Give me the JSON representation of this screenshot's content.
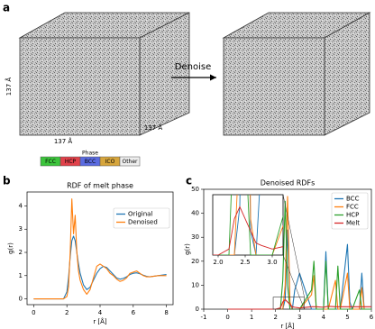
{
  "figure": {
    "panel_labels": [
      "a",
      "b",
      "c"
    ],
    "cube_labels": [
      "137 Å",
      "137 Å",
      "137 Å"
    ],
    "arrow_label": "Denoise",
    "phase_legend": {
      "title": "Phase",
      "items": [
        {
          "label": "FCC",
          "color": "#3cc43c"
        },
        {
          "label": "HCP",
          "color": "#e0414a"
        },
        {
          "label": "BCC",
          "color": "#5a6be0"
        },
        {
          "label": "ICO",
          "color": "#d6a53c"
        },
        {
          "label": "Other",
          "color": "#eeeeee"
        }
      ]
    }
  },
  "chart_data": [
    {
      "type": "line",
      "title": "RDF of melt phase",
      "xlabel": "r [Å]",
      "ylabel": "g(r)",
      "x": [
        0,
        0.5,
        1,
        1.5,
        1.8,
        2.0,
        2.1,
        2.2,
        2.3,
        2.4,
        2.5,
        2.6,
        2.7,
        2.8,
        3.0,
        3.2,
        3.4,
        3.6,
        3.8,
        4.0,
        4.2,
        4.4,
        4.6,
        4.8,
        5.0,
        5.2,
        5.4,
        5.6,
        5.8,
        6.0,
        6.2,
        6.4,
        6.6,
        6.8,
        7.0,
        7.5,
        8.0
      ],
      "series": [
        {
          "name": "Original",
          "color": "#1f77b4",
          "values": [
            0,
            0,
            0,
            0,
            0,
            0.3,
            0.9,
            1.8,
            2.5,
            2.7,
            2.5,
            2.0,
            1.5,
            1.1,
            0.6,
            0.4,
            0.5,
            0.8,
            1.1,
            1.3,
            1.4,
            1.35,
            1.2,
            1.05,
            0.9,
            0.85,
            0.88,
            0.95,
            1.05,
            1.1,
            1.12,
            1.08,
            1.02,
            0.97,
            0.95,
            1.0,
            1.05
          ]
        },
        {
          "name": "Denoised",
          "color": "#ff7f0e",
          "values": [
            0,
            0,
            0,
            0,
            0,
            0.1,
            0.5,
            2.0,
            4.3,
            2.8,
            3.6,
            2.0,
            1.2,
            0.8,
            0.4,
            0.2,
            0.4,
            0.9,
            1.4,
            1.5,
            1.4,
            1.3,
            1.1,
            1.0,
            0.85,
            0.75,
            0.8,
            0.9,
            1.1,
            1.15,
            1.2,
            1.1,
            1.0,
            0.95,
            0.95,
            1.0,
            1.0
          ]
        }
      ],
      "xlim": [
        -0.4,
        8.4
      ],
      "ylim": [
        -0.25,
        4.6
      ],
      "xticks": [
        0,
        2,
        4,
        6,
        8
      ],
      "yticks": [
        0,
        1,
        2,
        3,
        4
      ],
      "legend": "upper right"
    },
    {
      "type": "line",
      "title": "Denoised RDFs",
      "xlabel": "r [Å]",
      "ylabel": "g(r)",
      "x": [
        0,
        2.0,
        2.2,
        2.3,
        2.4,
        2.5,
        2.6,
        2.7,
        2.8,
        3.0,
        3.5,
        3.6,
        3.7,
        4.0,
        4.1,
        4.2,
        4.5,
        4.6,
        4.7,
        5.0,
        5.1,
        5.2,
        5.5,
        5.6,
        5.7,
        6.0
      ],
      "series": [
        {
          "name": "BCC",
          "color": "#1f77b4",
          "values": [
            0,
            0,
            0,
            0,
            4,
            33,
            2,
            0,
            8,
            15,
            0,
            0,
            0,
            0,
            24,
            0,
            0,
            0,
            0,
            27,
            3,
            0,
            0,
            15,
            0,
            0
          ]
        },
        {
          "name": "FCC",
          "color": "#ff7f0e",
          "values": [
            0,
            0,
            0,
            0,
            10,
            47,
            3,
            0,
            0,
            0,
            6,
            14,
            0,
            0,
            0,
            0,
            12,
            0,
            0,
            15,
            0,
            0,
            0,
            9,
            0,
            0
          ]
        },
        {
          "name": "HCP",
          "color": "#2ca02c",
          "values": [
            0,
            0,
            0,
            12,
            45,
            10,
            0,
            0,
            0,
            0,
            8,
            20,
            0,
            0,
            20,
            0,
            0,
            18,
            0,
            0,
            0,
            0,
            8,
            0,
            0,
            0
          ]
        },
        {
          "name": "Melt",
          "color": "#d62728",
          "values": [
            0,
            0,
            0.5,
            3,
            4,
            3,
            2,
            1,
            0.8,
            0.5,
            1,
            1,
            1,
            0.8,
            1,
            1.2,
            1,
            1,
            1,
            1,
            1,
            1,
            1,
            1,
            1,
            1
          ]
        }
      ],
      "xlim": [
        -1,
        6
      ],
      "ylim": [
        0,
        50
      ],
      "xticks": [
        -1,
        0,
        1,
        2,
        3,
        4,
        5,
        6
      ],
      "yticks": [
        0,
        10,
        20,
        30,
        40,
        50
      ],
      "legend": "upper right",
      "inset": {
        "xlim": [
          1.9,
          3.2
        ],
        "ylim": [
          0,
          5
        ],
        "xticks": [
          {
            "value": 2,
            "label": "2.0"
          },
          {
            "value": 2.5,
            "label": "2.5"
          },
          {
            "value": 3,
            "label": "3.0"
          }
        ]
      }
    }
  ]
}
